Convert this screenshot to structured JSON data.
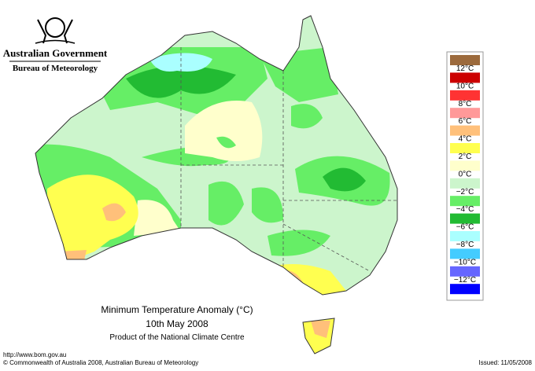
{
  "header": {
    "government": "Australian Government",
    "bureau": "Bureau of Meteorology"
  },
  "title": {
    "line1": "Minimum Temperature Anomaly (°C)",
    "date": "10th May 2008",
    "product": "Product of the National Climate Centre"
  },
  "legend": {
    "colors": [
      "#9c6a3c",
      "#cc0000",
      "#ff3333",
      "#ff9999",
      "#ffc07a",
      "#ffff50",
      "#ffffcc",
      "#ccf5cc",
      "#66ee66",
      "#22bb33",
      "#aaffff",
      "#44ccff",
      "#6666ff",
      "#0000ff"
    ],
    "labels": [
      "12°C",
      "10°C",
      "8°C",
      "6°C",
      "4°C",
      "2°C",
      "0°C",
      "−2°C",
      "−4°C",
      "−6°C",
      "−8°C",
      "−10°C",
      "−12°C"
    ]
  },
  "footer": {
    "url": "http://www.bom.gov.au",
    "copyright": "© Commonwealth of Australia 2008, Australian Bureau of Meteorology",
    "issued": "Issued: 11/05/2008"
  }
}
